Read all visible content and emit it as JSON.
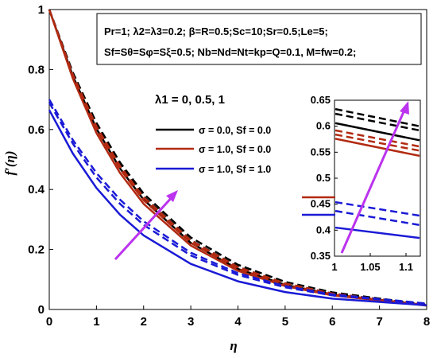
{
  "chart_data": {
    "type": "line",
    "title": "",
    "xlabel": "η",
    "ylabel": "f′(η)",
    "xlim": [
      0,
      8
    ],
    "ylim": [
      0,
      1
    ],
    "xticks": [
      "0",
      "1",
      "2",
      "3",
      "4",
      "5",
      "6",
      "7",
      "8"
    ],
    "yticks": [
      "0",
      "0.2",
      "0.4",
      "0.6",
      "0.8",
      "1"
    ],
    "grid": false,
    "param_line1": "Pr=1; λ2=λ3=0.2; β=R=0.5;Sc=10;Sr=0.5;Le=5;",
    "param_line2": "Sf=Sθ=Sφ=Sξ=0.5; Nb=Nd=Nt=kp=Q=0.1, M=fw=0.2;",
    "lambda_label": "λ1 = 0, 0.5, 1",
    "legend": [
      {
        "label": "σ = 0.0, Sf = 0.0",
        "color": "#000000"
      },
      {
        "label": "σ = 1.0, Sf = 0.0",
        "color": "#b22a12"
      },
      {
        "label": "σ = 1.0, Sf = 1.0",
        "color": "#1a1ad6"
      }
    ],
    "series": [
      {
        "group": 0,
        "style": "dashed",
        "f0": 1.0,
        "x": [
          0,
          0.5,
          1,
          1.5,
          2,
          3,
          4,
          5,
          6,
          8
        ],
        "y": [
          1.0,
          0.79,
          0.622,
          0.49,
          0.386,
          0.24,
          0.149,
          0.092,
          0.057,
          0.016
        ]
      },
      {
        "group": 0,
        "style": "dashed",
        "f0": 1.0,
        "x": [
          0,
          0.5,
          1,
          1.5,
          2,
          3,
          4,
          5,
          6,
          8
        ],
        "y": [
          1.0,
          0.785,
          0.614,
          0.48,
          0.376,
          0.231,
          0.142,
          0.087,
          0.053,
          0.015
        ]
      },
      {
        "group": 0,
        "style": "solid",
        "f0": 1.0,
        "x": [
          0,
          0.5,
          1,
          1.5,
          2,
          3,
          4,
          5,
          6,
          8
        ],
        "y": [
          1.0,
          0.778,
          0.603,
          0.47,
          0.366,
          0.222,
          0.135,
          0.082,
          0.05,
          0.014
        ]
      },
      {
        "group": 1,
        "style": "dashed",
        "f0": 1.0,
        "x": [
          0,
          0.5,
          1,
          1.5,
          2,
          3,
          4,
          5,
          6,
          8
        ],
        "y": [
          1.0,
          0.783,
          0.61,
          0.478,
          0.374,
          0.23,
          0.141,
          0.087,
          0.053,
          0.015
        ]
      },
      {
        "group": 1,
        "style": "dashed",
        "f0": 1.0,
        "x": [
          0,
          0.5,
          1,
          1.5,
          2,
          3,
          4,
          5,
          6,
          8
        ],
        "y": [
          1.0,
          0.777,
          0.6,
          0.468,
          0.364,
          0.222,
          0.135,
          0.083,
          0.05,
          0.014
        ]
      },
      {
        "group": 1,
        "style": "solid",
        "f0": 1.0,
        "x": [
          0,
          0.5,
          1,
          1.5,
          2,
          3,
          4,
          5,
          6,
          8
        ],
        "y": [
          1.0,
          0.77,
          0.588,
          0.455,
          0.352,
          0.213,
          0.129,
          0.078,
          0.047,
          0.013
        ]
      },
      {
        "group": 2,
        "style": "dashed",
        "f0": 0.7,
        "x": [
          0,
          0.5,
          1,
          1.5,
          2,
          3,
          4,
          5,
          6,
          8
        ],
        "y": [
          0.7,
          0.565,
          0.455,
          0.366,
          0.294,
          0.189,
          0.121,
          0.078,
          0.05,
          0.02
        ]
      },
      {
        "group": 2,
        "style": "dashed",
        "f0": 0.69,
        "x": [
          0,
          0.5,
          1,
          1.5,
          2,
          3,
          4,
          5,
          6,
          8
        ],
        "y": [
          0.69,
          0.553,
          0.44,
          0.352,
          0.282,
          0.18,
          0.115,
          0.074,
          0.047,
          0.019
        ]
      },
      {
        "group": 2,
        "style": "solid",
        "f0": 0.665,
        "x": [
          0,
          0.5,
          1,
          1.5,
          2,
          3,
          4,
          5,
          6,
          8
        ],
        "y": [
          0.665,
          0.52,
          0.405,
          0.316,
          0.247,
          0.152,
          0.094,
          0.058,
          0.036,
          0.014
        ]
      }
    ],
    "inset": {
      "xlim": [
        1,
        1.12
      ],
      "ylim": [
        0.35,
        0.65
      ],
      "xticks": [
        "1",
        "1.05",
        "1.1"
      ],
      "yticks": [
        "0.35",
        "0.4",
        "0.45",
        "0.5",
        "0.55",
        "0.6",
        "0.65"
      ],
      "series": [
        {
          "group": 0,
          "style": "dashed",
          "y0": 0.633,
          "y1": 0.6
        },
        {
          "group": 0,
          "style": "dashed",
          "y0": 0.624,
          "y1": 0.592
        },
        {
          "group": 0,
          "style": "solid",
          "y0": 0.606,
          "y1": 0.573
        },
        {
          "group": 1,
          "style": "dashed",
          "y0": 0.592,
          "y1": 0.561
        },
        {
          "group": 1,
          "style": "dashed",
          "y0": 0.584,
          "y1": 0.553
        },
        {
          "group": 1,
          "style": "solid",
          "y0": 0.576,
          "y1": 0.543
        },
        {
          "group": 2,
          "style": "dashed",
          "y0": 0.454,
          "y1": 0.428
        },
        {
          "group": 2,
          "style": "dashed",
          "y0": 0.437,
          "y1": 0.41
        },
        {
          "group": 2,
          "style": "solid",
          "y0": 0.405,
          "y1": 0.385
        }
      ]
    },
    "colors": {
      "group0": "#000000",
      "group1": "#b22a12",
      "group2": "#1a1ad6",
      "arrow": "#bb33ee"
    }
  }
}
